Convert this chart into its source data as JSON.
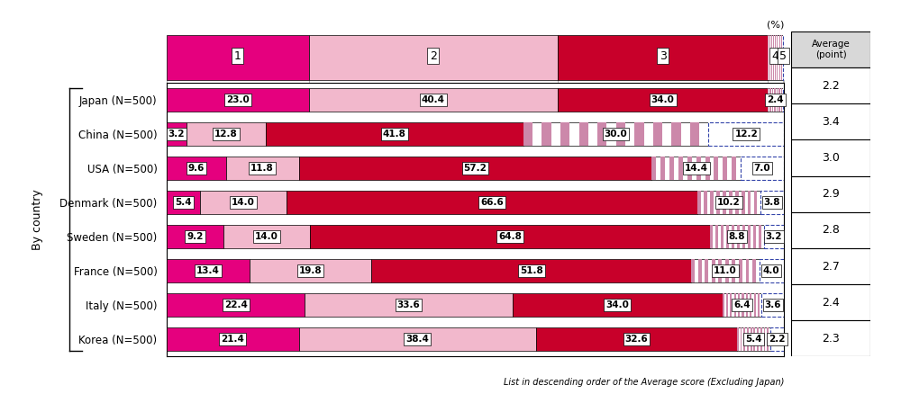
{
  "countries": [
    "Japan",
    "China",
    "USA",
    "Denmark",
    "Sweden",
    "France",
    "Italy",
    "Korea"
  ],
  "n": 500,
  "scores": {
    "Japan": [
      23.0,
      40.4,
      34.0,
      2.4,
      0.2
    ],
    "China": [
      3.2,
      12.8,
      41.8,
      30.0,
      12.2
    ],
    "USA": [
      9.6,
      11.8,
      57.2,
      14.4,
      7.0
    ],
    "Denmark": [
      5.4,
      14.0,
      66.6,
      10.2,
      3.8
    ],
    "Sweden": [
      9.2,
      14.0,
      64.8,
      8.8,
      3.2
    ],
    "France": [
      13.4,
      19.8,
      51.8,
      11.0,
      4.0
    ],
    "Italy": [
      22.4,
      33.6,
      34.0,
      6.4,
      3.6
    ],
    "Korea": [
      21.4,
      38.4,
      32.6,
      5.4,
      2.2
    ]
  },
  "averages": {
    "Japan": "2.2",
    "China": "3.4",
    "USA": "3.0",
    "Denmark": "2.9",
    "Sweden": "2.8",
    "France": "2.7",
    "Italy": "2.4",
    "Korea": "2.3"
  },
  "c1": "#E5007E",
  "c2": "#F2B8CC",
  "c3": "#C8002A",
  "c4_fg": "#CC88AA",
  "c4_bg": "#FFFFFF",
  "c5_bg": "#FFFFFF",
  "c5_dash": "#3344AA",
  "avg_bg": "#D8D8D8",
  "bar_height": 0.68,
  "figsize": [
    10.0,
    4.38
  ],
  "dpi": 100,
  "footnote": "List in descending order of the Average score (Excluding Japan)",
  "ylabel": "By country",
  "avg_label": "Average\n(point)"
}
